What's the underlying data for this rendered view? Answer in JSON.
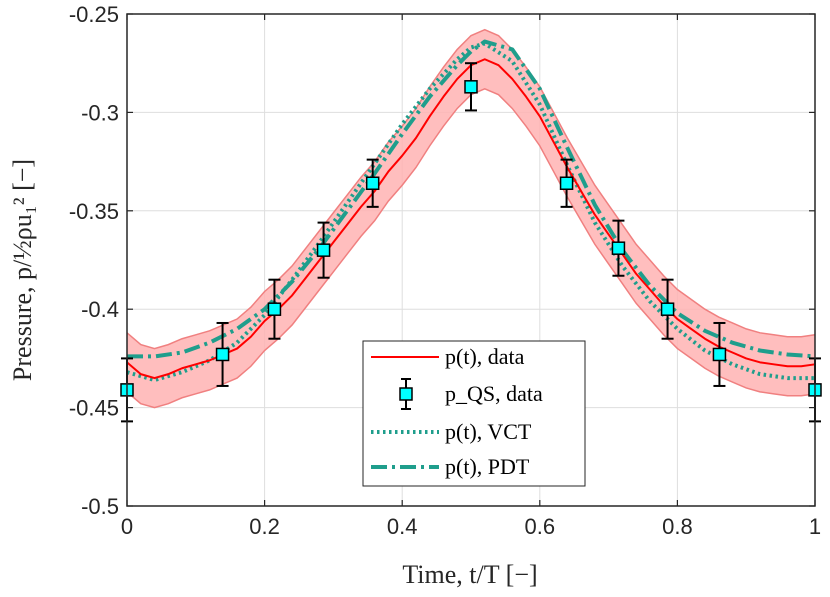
{
  "chart_data": {
    "type": "line",
    "title": "",
    "xlabel": "Time, t/T [−]",
    "ylabel": "Pressure, p/½ρu₁² [−]",
    "xlim": [
      0,
      1
    ],
    "ylim": [
      -0.5,
      -0.25
    ],
    "xticks": [
      0,
      0.2,
      0.4,
      0.6,
      0.8,
      1
    ],
    "xtick_labels": [
      "0",
      "0.2",
      "0.4",
      "0.6",
      "0.8",
      "1"
    ],
    "yticks": [
      -0.5,
      -0.45,
      -0.4,
      -0.35,
      -0.3,
      -0.25
    ],
    "ytick_labels": [
      "-0.5",
      "-0.45",
      "-0.4",
      "-0.35",
      "-0.3",
      "-0.25"
    ],
    "grid": true,
    "legend_position": "bottom-right",
    "colors": {
      "data_line": "#ff0000",
      "band_fill": "#ffb3b3",
      "band_edge": "#f08080",
      "marker_fill": "#00ffff",
      "marker_edge": "#000000",
      "model": "#1f9e8c"
    },
    "series": [
      {
        "name": "p(t), data",
        "legend_label": "p(t), data",
        "style": "solid",
        "x": [
          0,
          0.02,
          0.04,
          0.06,
          0.08,
          0.1,
          0.12,
          0.14,
          0.16,
          0.18,
          0.2,
          0.22,
          0.24,
          0.26,
          0.28,
          0.3,
          0.32,
          0.34,
          0.36,
          0.38,
          0.4,
          0.42,
          0.44,
          0.46,
          0.48,
          0.5,
          0.52,
          0.54,
          0.56,
          0.58,
          0.6,
          0.62,
          0.64,
          0.66,
          0.68,
          0.7,
          0.72,
          0.74,
          0.76,
          0.78,
          0.8,
          0.82,
          0.84,
          0.86,
          0.88,
          0.9,
          0.92,
          0.94,
          0.96,
          0.98,
          1
        ],
        "y": [
          -0.427,
          -0.433,
          -0.435,
          -0.433,
          -0.43,
          -0.428,
          -0.426,
          -0.423,
          -0.42,
          -0.414,
          -0.406,
          -0.4,
          -0.393,
          -0.384,
          -0.375,
          -0.366,
          -0.357,
          -0.348,
          -0.34,
          -0.33,
          -0.322,
          -0.313,
          -0.302,
          -0.292,
          -0.283,
          -0.276,
          -0.273,
          -0.276,
          -0.283,
          -0.292,
          -0.302,
          -0.315,
          -0.328,
          -0.34,
          -0.352,
          -0.362,
          -0.372,
          -0.382,
          -0.39,
          -0.398,
          -0.405,
          -0.41,
          -0.415,
          -0.419,
          -0.422,
          -0.425,
          -0.427,
          -0.428,
          -0.429,
          -0.429,
          -0.428
        ],
        "band_half_width": 0.015
      },
      {
        "name": "p_QS, data",
        "legend_label": "p_QS, data",
        "style": "markers",
        "x": [
          0,
          0.1389,
          0.2143,
          0.2857,
          0.3571,
          0.5,
          0.6389,
          0.7143,
          0.7857,
          0.8611,
          1
        ],
        "y": [
          -0.441,
          -0.423,
          -0.4,
          -0.37,
          -0.336,
          -0.287,
          -0.336,
          -0.369,
          -0.4,
          -0.423,
          -0.441
        ],
        "err": [
          0.016,
          0.016,
          0.015,
          0.014,
          0.012,
          0.012,
          0.012,
          0.014,
          0.015,
          0.016,
          0.016
        ]
      },
      {
        "name": "p(t), VCT",
        "legend_label": "p(t), VCT",
        "style": "dotted",
        "x": [
          0,
          0.04,
          0.08,
          0.12,
          0.16,
          0.2,
          0.24,
          0.28,
          0.32,
          0.36,
          0.4,
          0.44,
          0.48,
          0.5,
          0.52,
          0.56,
          0.6,
          0.64,
          0.68,
          0.72,
          0.76,
          0.8,
          0.84,
          0.88,
          0.92,
          0.96,
          1
        ],
        "y": [
          -0.432,
          -0.436,
          -0.432,
          -0.426,
          -0.417,
          -0.403,
          -0.385,
          -0.366,
          -0.346,
          -0.326,
          -0.306,
          -0.288,
          -0.273,
          -0.267,
          -0.265,
          -0.274,
          -0.296,
          -0.327,
          -0.356,
          -0.378,
          -0.396,
          -0.41,
          -0.421,
          -0.428,
          -0.433,
          -0.435,
          -0.435
        ]
      },
      {
        "name": "p(t), PDT",
        "legend_label": "p(t), PDT",
        "style": "dashdot",
        "x": [
          0,
          0.04,
          0.08,
          0.12,
          0.16,
          0.2,
          0.24,
          0.28,
          0.32,
          0.36,
          0.4,
          0.44,
          0.48,
          0.5,
          0.52,
          0.56,
          0.6,
          0.64,
          0.68,
          0.72,
          0.76,
          0.8,
          0.84,
          0.88,
          0.92,
          0.96,
          1
        ],
        "y": [
          -0.424,
          -0.424,
          -0.422,
          -0.417,
          -0.41,
          -0.4,
          -0.386,
          -0.369,
          -0.35,
          -0.331,
          -0.311,
          -0.292,
          -0.276,
          -0.269,
          -0.264,
          -0.268,
          -0.288,
          -0.318,
          -0.347,
          -0.37,
          -0.388,
          -0.402,
          -0.411,
          -0.417,
          -0.421,
          -0.423,
          -0.424
        ]
      }
    ]
  }
}
